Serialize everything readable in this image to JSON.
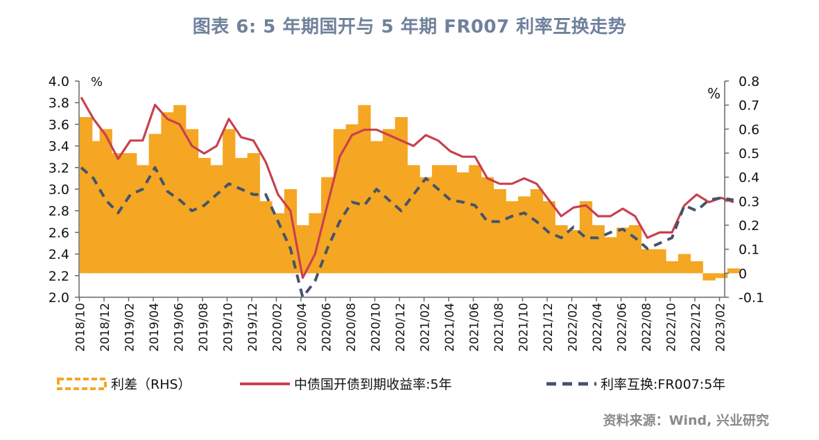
{
  "chart_data": {
    "type": "line",
    "title": "图表 6:  5 年期国开与 5 年期 FR007 利率互换走势",
    "left_axis": {
      "label": "%",
      "ylim": [
        2.0,
        4.0
      ],
      "ticks": [
        "4.0",
        "3.8",
        "3.6",
        "3.4",
        "3.2",
        "3.0",
        "2.8",
        "2.6",
        "2.4",
        "2.2",
        "2.0"
      ]
    },
    "right_axis": {
      "label": "%",
      "ylim": [
        -0.1,
        0.8
      ],
      "ticks": [
        "0.8",
        "0.7",
        "0.6",
        "0.5",
        "0.4",
        "0.3",
        "0.2",
        "0.1",
        "0",
        "-0.1"
      ]
    },
    "x_tick_labels": [
      "2018/10",
      "2018/12",
      "2019/02",
      "2019/04",
      "2019/06",
      "2019/08",
      "2019/10",
      "2019/12",
      "2020/02",
      "2020/04",
      "2020/06",
      "2020/08",
      "2020/10",
      "2020/12",
      "2021/02",
      "2021/04",
      "2021/06",
      "2021/08",
      "2021/10",
      "2021/12",
      "2022/02",
      "2022/04",
      "2022/06",
      "2022/08",
      "2022/10",
      "2022/12",
      "2023/02"
    ],
    "x_months_from_2018_10": [
      0,
      1,
      2,
      3,
      4,
      5,
      6,
      7,
      8,
      9,
      10,
      11,
      12,
      13,
      14,
      15,
      16,
      17,
      18,
      19,
      20,
      21,
      22,
      23,
      24,
      25,
      26,
      27,
      28,
      29,
      30,
      31,
      32,
      33,
      34,
      35,
      36,
      37,
      38,
      39,
      40,
      41,
      42,
      43,
      44,
      45,
      46,
      47,
      48,
      49,
      50,
      51,
      52,
      53
    ],
    "series": [
      {
        "name": "利差（RHS）",
        "axis": "right",
        "kind": "bar",
        "color": "#f5a623",
        "values": [
          0.65,
          0.55,
          0.6,
          0.5,
          0.5,
          0.45,
          0.58,
          0.67,
          0.7,
          0.6,
          0.48,
          0.45,
          0.6,
          0.48,
          0.5,
          0.3,
          0.25,
          0.35,
          0.2,
          0.25,
          0.4,
          0.6,
          0.62,
          0.7,
          0.55,
          0.6,
          0.65,
          0.45,
          0.4,
          0.45,
          0.45,
          0.42,
          0.45,
          0.4,
          0.35,
          0.3,
          0.32,
          0.35,
          0.3,
          0.2,
          0.18,
          0.3,
          0.2,
          0.15,
          0.19,
          0.2,
          0.1,
          0.1,
          0.05,
          0.08,
          0.05,
          -0.03,
          -0.02,
          0.02
        ]
      },
      {
        "name": "中债国开债到期收益率:5年",
        "axis": "left",
        "kind": "line",
        "color": "#c8404f",
        "values": [
          3.85,
          3.65,
          3.5,
          3.28,
          3.45,
          3.45,
          3.78,
          3.65,
          3.6,
          3.4,
          3.33,
          3.4,
          3.65,
          3.48,
          3.45,
          3.25,
          2.95,
          2.8,
          2.18,
          2.4,
          2.85,
          3.3,
          3.5,
          3.55,
          3.55,
          3.5,
          3.45,
          3.4,
          3.5,
          3.45,
          3.35,
          3.3,
          3.3,
          3.1,
          3.05,
          3.05,
          3.1,
          3.05,
          2.9,
          2.75,
          2.83,
          2.85,
          2.75,
          2.75,
          2.82,
          2.75,
          2.55,
          2.6,
          2.6,
          2.85,
          2.95,
          2.88,
          2.92,
          2.88
        ]
      },
      {
        "name": "利率互换:FR007:5年",
        "axis": "left",
        "kind": "dashed-line",
        "color": "#44546a",
        "values": [
          3.2,
          3.1,
          2.9,
          2.78,
          2.95,
          3.0,
          3.2,
          2.98,
          2.9,
          2.8,
          2.85,
          2.95,
          3.05,
          3.0,
          2.95,
          2.95,
          2.7,
          2.45,
          2.0,
          2.15,
          2.45,
          2.7,
          2.88,
          2.85,
          3.0,
          2.9,
          2.8,
          2.95,
          3.1,
          3.0,
          2.9,
          2.88,
          2.85,
          2.7,
          2.7,
          2.75,
          2.78,
          2.7,
          2.6,
          2.55,
          2.65,
          2.55,
          2.55,
          2.6,
          2.63,
          2.55,
          2.45,
          2.5,
          2.55,
          2.85,
          2.8,
          2.9,
          2.92,
          2.9
        ]
      }
    ],
    "legend_position": "bottom",
    "grid": false,
    "source": "资料来源：Wind, 兴业研究"
  }
}
